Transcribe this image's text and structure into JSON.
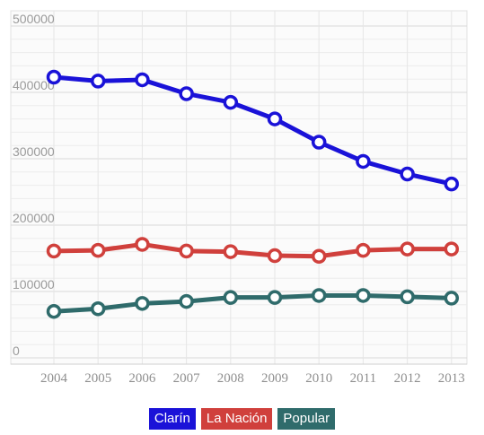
{
  "chart_data": {
    "type": "line",
    "x": [
      "2004",
      "2005",
      "2006",
      "2007",
      "2008",
      "2009",
      "2010",
      "2011",
      "2012",
      "2013"
    ],
    "yticks": [
      "500000",
      "400000",
      "300000",
      "200000",
      "100000",
      "0"
    ],
    "ylim": [
      0,
      500000
    ],
    "grid": true,
    "legend_position": "bottom-center",
    "series": [
      {
        "name": "Clarín",
        "color": "#1a12d8",
        "values": [
          423000,
          417000,
          419000,
          398000,
          385000,
          360000,
          325000,
          296000,
          277000,
          262000
        ]
      },
      {
        "name": "La Nación",
        "color": "#d0403c",
        "values": [
          161000,
          162000,
          171000,
          161000,
          160000,
          154000,
          153000,
          162000,
          164000,
          164000
        ]
      },
      {
        "name": "Popular",
        "color": "#2f6b6b",
        "values": [
          70000,
          74000,
          82000,
          85000,
          91000,
          91000,
          94000,
          94000,
          92000,
          90000
        ]
      }
    ]
  }
}
